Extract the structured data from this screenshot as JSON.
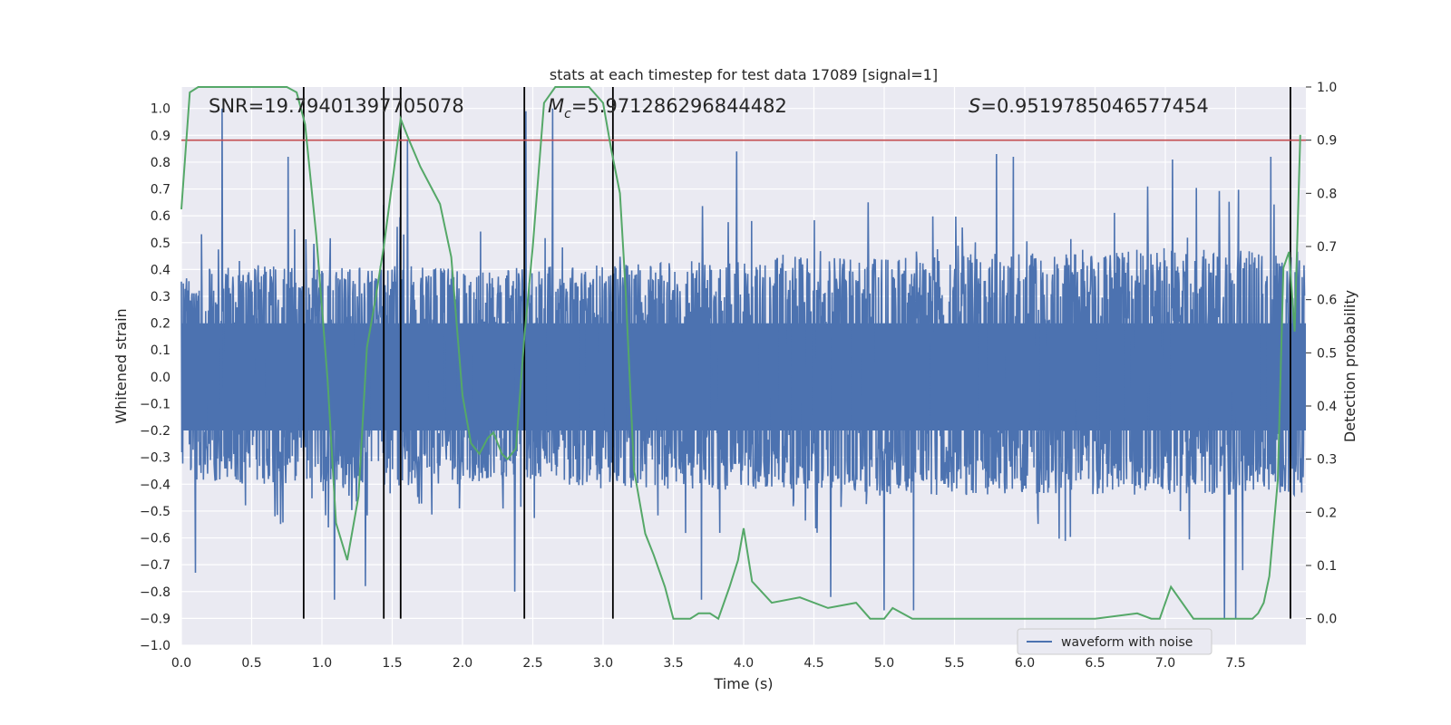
{
  "chart_data": {
    "type": "line",
    "title": "stats at each timestep for test data 17089 [signal=1]",
    "xlabel": "Time (s)",
    "ylabel": "Whitened strain",
    "y2label": "Detection probability",
    "xlim": [
      0.0,
      8.0
    ],
    "ylim": [
      -1.0,
      1.08
    ],
    "y2lim": [
      -0.05,
      1.0
    ],
    "x_ticks": [
      0.0,
      0.5,
      1.0,
      1.5,
      2.0,
      2.5,
      3.0,
      3.5,
      4.0,
      4.5,
      5.0,
      5.5,
      6.0,
      6.5,
      7.0,
      7.5
    ],
    "x_tick_labels": [
      "0.0",
      "0.5",
      "1.0",
      "1.5",
      "2.0",
      "2.5",
      "3.0",
      "3.5",
      "4.0",
      "4.5",
      "5.0",
      "5.5",
      "6.0",
      "6.5",
      "7.0",
      "7.5"
    ],
    "y_ticks": [
      -1.0,
      -0.9,
      -0.8,
      -0.7,
      -0.6,
      -0.5,
      -0.4,
      -0.3,
      -0.2,
      -0.1,
      0.0,
      0.1,
      0.2,
      0.3,
      0.4,
      0.5,
      0.6,
      0.7,
      0.8,
      0.9,
      1.0
    ],
    "y_tick_labels": [
      "−1.0",
      "−0.9",
      "−0.8",
      "−0.7",
      "−0.6",
      "−0.5",
      "−0.4",
      "−0.3",
      "−0.2",
      "−0.1",
      "0.0",
      "0.1",
      "0.2",
      "0.3",
      "0.4",
      "0.5",
      "0.6",
      "0.7",
      "0.8",
      "0.9",
      "1.0"
    ],
    "y2_ticks": [
      0.0,
      0.1,
      0.2,
      0.3,
      0.4,
      0.5,
      0.6,
      0.7,
      0.8,
      0.9,
      1.0
    ],
    "y2_tick_labels": [
      "0.0",
      "0.1",
      "0.2",
      "0.3",
      "0.4",
      "0.5",
      "0.6",
      "0.7",
      "0.8",
      "0.9",
      "1.0"
    ],
    "annotations": {
      "snr": "SNR=19.79401397705078",
      "mc_symbol": "M",
      "mc_sub": "c",
      "mc_value": "=5.971286296844482",
      "s_symbol": "S",
      "s_value": "=0.9519785046577454"
    },
    "threshold": {
      "axis": "y2",
      "value": 0.9,
      "color": "#c44e52"
    },
    "vertical_markers": [
      0.87,
      1.44,
      1.56,
      2.44,
      3.07,
      7.89
    ],
    "legend": {
      "label": "waveform with noise",
      "position": "lower-right"
    },
    "series": [
      {
        "name": "waveform with noise",
        "axis": "y",
        "color": "#4c72b0",
        "envelope": {
          "x": [
            0.0,
            0.5,
            1.0,
            1.5,
            2.0,
            2.5,
            3.0,
            3.5,
            4.0,
            4.5,
            5.0,
            5.5,
            6.0,
            6.5,
            7.0,
            7.5,
            7.99
          ],
          "base_high": [
            0.38,
            0.42,
            0.4,
            0.42,
            0.4,
            0.41,
            0.42,
            0.43,
            0.44,
            0.45,
            0.44,
            0.46,
            0.47,
            0.47,
            0.48,
            0.47,
            0.48
          ],
          "base_low": [
            -0.38,
            -0.4,
            -0.4,
            -0.41,
            -0.4,
            -0.4,
            -0.41,
            -0.42,
            -0.42,
            -0.42,
            -0.44,
            -0.44,
            -0.44,
            -0.44,
            -0.44,
            -0.44,
            -0.44
          ]
        },
        "peaks": [
          {
            "x": 0.29,
            "y": 1.0
          },
          {
            "x": 0.76,
            "y": 0.82
          },
          {
            "x": 1.44,
            "y": 0.64
          },
          {
            "x": 1.61,
            "y": 0.88
          },
          {
            "x": 2.45,
            "y": 0.99
          },
          {
            "x": 2.64,
            "y": 1.0
          },
          {
            "x": 3.95,
            "y": 0.84
          },
          {
            "x": 5.8,
            "y": 0.83
          },
          {
            "x": 5.92,
            "y": 0.82
          },
          {
            "x": 7.05,
            "y": 0.81
          },
          {
            "x": 7.75,
            "y": 0.82
          },
          {
            "x": 0.1,
            "y": -0.73
          },
          {
            "x": 1.09,
            "y": -0.83
          },
          {
            "x": 1.31,
            "y": -0.78
          },
          {
            "x": 2.37,
            "y": -0.8
          },
          {
            "x": 3.7,
            "y": -0.83
          },
          {
            "x": 4.62,
            "y": -0.82
          },
          {
            "x": 5.0,
            "y": -0.87
          },
          {
            "x": 5.21,
            "y": -0.87
          },
          {
            "x": 7.42,
            "y": -0.9
          },
          {
            "x": 7.5,
            "y": -0.9
          },
          {
            "x": 7.55,
            "y": -0.72
          }
        ]
      },
      {
        "name": "detection probability",
        "axis": "y2",
        "color": "#55a868",
        "x": [
          0.0,
          0.06,
          0.12,
          0.2,
          0.4,
          0.6,
          0.75,
          0.82,
          0.88,
          0.96,
          1.04,
          1.1,
          1.18,
          1.26,
          1.32,
          1.38,
          1.44,
          1.5,
          1.56,
          1.62,
          1.7,
          1.76,
          1.84,
          1.92,
          2.0,
          2.06,
          2.12,
          2.18,
          2.22,
          2.28,
          2.32,
          2.38,
          2.44,
          2.5,
          2.58,
          2.66,
          2.74,
          2.82,
          2.9,
          3.0,
          3.06,
          3.12,
          3.16,
          3.22,
          3.3,
          3.36,
          3.44,
          3.5,
          3.56,
          3.62,
          3.68,
          3.76,
          3.82,
          3.9,
          3.96,
          4.0,
          4.06,
          4.2,
          4.4,
          4.6,
          4.8,
          4.9,
          4.96,
          5.0,
          5.06,
          5.2,
          5.5,
          5.8,
          6.0,
          6.2,
          6.5,
          6.8,
          6.9,
          6.96,
          7.04,
          7.2,
          7.4,
          7.5,
          7.56,
          7.62,
          7.66,
          7.7,
          7.74,
          7.8,
          7.84,
          7.88,
          7.92,
          7.96
        ],
        "y": [
          0.77,
          0.99,
          1.0,
          1.0,
          1.0,
          1.0,
          1.0,
          0.99,
          0.93,
          0.72,
          0.45,
          0.18,
          0.11,
          0.23,
          0.51,
          0.6,
          0.7,
          0.82,
          0.94,
          0.9,
          0.85,
          0.82,
          0.78,
          0.68,
          0.42,
          0.33,
          0.31,
          0.34,
          0.35,
          0.31,
          0.3,
          0.32,
          0.53,
          0.7,
          0.97,
          1.0,
          1.0,
          1.0,
          1.0,
          0.97,
          0.88,
          0.8,
          0.62,
          0.28,
          0.16,
          0.12,
          0.06,
          0.0,
          0.0,
          0.0,
          0.01,
          0.01,
          0.0,
          0.06,
          0.11,
          0.17,
          0.07,
          0.03,
          0.04,
          0.02,
          0.03,
          0.0,
          0.0,
          0.0,
          0.02,
          0.0,
          0.0,
          0.0,
          0.0,
          0.0,
          0.0,
          0.01,
          0.0,
          0.0,
          0.06,
          0.0,
          0.0,
          0.0,
          0.0,
          0.0,
          0.01,
          0.03,
          0.08,
          0.26,
          0.66,
          0.69,
          0.54,
          0.91
        ]
      }
    ]
  }
}
